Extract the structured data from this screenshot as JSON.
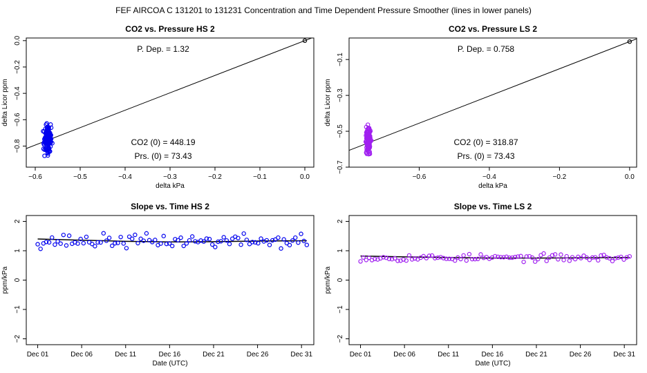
{
  "main_title": "FEF   AIRCOA C   131201 to 131231   Concentration and Time Dependent Pressure Smoother (lines in lower panels)",
  "chart_data": [
    {
      "type": "scatter",
      "title": "CO2 vs. Pressure HS 2",
      "xlabel": "delta kPa",
      "ylabel": "delta Licor ppm",
      "xlim": [
        -0.62,
        0.02
      ],
      "ylim": [
        -0.96,
        0.02
      ],
      "xticks": [
        -0.6,
        -0.5,
        -0.4,
        -0.3,
        -0.2,
        -0.1,
        0.0
      ],
      "xtick_labels": [
        "−0.6",
        "−0.5",
        "−0.4",
        "−0.3",
        "−0.2",
        "−0.1",
        "0.0"
      ],
      "yticks": [
        0.0,
        -0.2,
        -0.4,
        -0.6,
        -0.8
      ],
      "ytick_labels": [
        "0.0",
        "−0.2",
        "−0.4",
        "−0.6",
        "−0.8"
      ],
      "point_color": "#0000ee",
      "cluster": {
        "x_range": [
          -0.585,
          -0.56
        ],
        "y_range": [
          -0.92,
          -0.58
        ],
        "count": 140,
        "seed": 11
      },
      "fit_line": {
        "slope": 1.32,
        "intercept": 0.0
      },
      "origin_point": [
        0.0,
        0.0
      ],
      "annotations": {
        "pdep": "P. Dep. =  1.32",
        "co2": "CO2 (0) =  448.19",
        "prs": "Prs. (0) = 73.43"
      }
    },
    {
      "type": "scatter",
      "title": "CO2 vs. Pressure LS 2",
      "xlabel": "delta kPa",
      "ylabel": "delta Licor ppm",
      "xlim": [
        -0.8,
        0.02
      ],
      "ylim": [
        -0.7,
        0.02
      ],
      "xticks": [
        -0.6,
        -0.4,
        -0.2,
        0.0
      ],
      "xtick_labels": [
        "−0.6",
        "−0.4",
        "−0.2",
        "0.0"
      ],
      "yticks": [
        -0.1,
        -0.3,
        -0.5,
        -0.7
      ],
      "ytick_labels": [
        "−0.1",
        "−0.3",
        "−0.5",
        "−0.7"
      ],
      "point_color": "#a020f0",
      "cluster": {
        "x_range": [
          -0.755,
          -0.735
        ],
        "y_range": [
          -0.68,
          -0.42
        ],
        "count": 130,
        "seed": 23
      },
      "fit_line": {
        "slope": 0.758,
        "intercept": 0.0
      },
      "origin_point": [
        0.0,
        0.0
      ],
      "annotations": {
        "pdep": "P. Dep. =  0.758",
        "co2": "CO2 (0) =  318.87",
        "prs": "Prs. (0) = 73.43"
      }
    },
    {
      "type": "scatter",
      "title": "Slope vs. Time HS 2",
      "xlabel": "Date (UTC)",
      "ylabel": "ppm/kPa",
      "xlim": [
        -1.3,
        31.4
      ],
      "ylim": [
        -2.2,
        2.2
      ],
      "xticks": [
        0,
        5,
        10,
        15,
        20,
        25,
        30
      ],
      "xtick_labels": [
        "Dec 01",
        "Dec 06",
        "Dec 11",
        "Dec 16",
        "Dec 21",
        "Dec 26",
        "Dec 31"
      ],
      "yticks": [
        -2,
        -1,
        0,
        1,
        2
      ],
      "ytick_labels": [
        "−2",
        "−1",
        "0",
        "1",
        "2"
      ],
      "point_color": "#0000ee",
      "scatter": {
        "x_range": [
          0,
          30.6
        ],
        "count": 95,
        "mean": 1.33,
        "spread": 0.16,
        "seed": 37
      },
      "smooth_line": {
        "x": [
          0,
          5,
          10,
          15,
          20,
          25,
          30.6
        ],
        "y": [
          1.4,
          1.36,
          1.32,
          1.3,
          1.31,
          1.33,
          1.34
        ]
      }
    },
    {
      "type": "scatter",
      "title": "Slope vs. Time LS 2",
      "xlabel": "Date (UTC)",
      "ylabel": "ppm/kPa",
      "xlim": [
        -1.3,
        31.4
      ],
      "ylim": [
        -2.2,
        2.2
      ],
      "xticks": [
        0,
        5,
        10,
        15,
        20,
        25,
        30
      ],
      "xtick_labels": [
        "Dec 01",
        "Dec 06",
        "Dec 11",
        "Dec 16",
        "Dec 21",
        "Dec 26",
        "Dec 31"
      ],
      "yticks": [
        -2,
        -1,
        0,
        1,
        2
      ],
      "ytick_labels": [
        "−2",
        "−1",
        "0",
        "1",
        "2"
      ],
      "point_color": "#a020f0",
      "scatter": {
        "x_range": [
          0,
          30.6
        ],
        "count": 95,
        "mean": 0.76,
        "spread": 0.08,
        "seed": 53
      },
      "smooth_line": {
        "x": [
          0,
          5,
          10,
          15,
          20,
          25,
          30.6
        ],
        "y": [
          0.82,
          0.79,
          0.77,
          0.75,
          0.75,
          0.76,
          0.77
        ]
      }
    }
  ]
}
